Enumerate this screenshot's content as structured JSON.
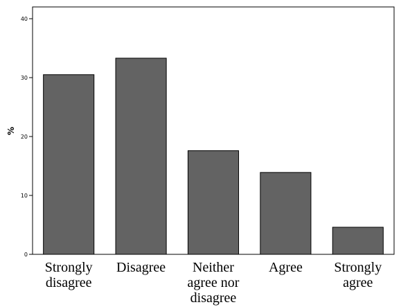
{
  "chart_data": {
    "type": "bar",
    "title": "",
    "xlabel": "",
    "ylabel": "%",
    "ylim": [
      0,
      42
    ],
    "yticks": [
      0,
      10,
      20,
      30,
      40
    ],
    "grid": false,
    "legend": "none",
    "bar_color": "#636363",
    "categories": [
      [
        "Strongly",
        "disagree"
      ],
      [
        "Disagree"
      ],
      [
        "Neither",
        "agree nor",
        "disagree"
      ],
      [
        "Agree"
      ],
      [
        "Strongly",
        "agree"
      ]
    ],
    "values": [
      30.5,
      33.3,
      17.6,
      13.9,
      4.6
    ]
  }
}
